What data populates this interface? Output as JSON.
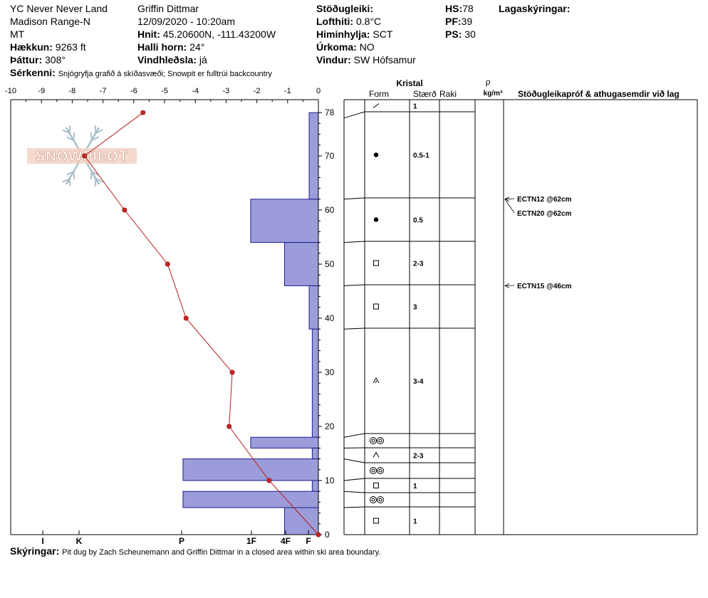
{
  "header": {
    "location": "YC Never Never Land",
    "range": "Madison Range-N",
    "state": "MT",
    "elevation_label": "Hækkun:",
    "elevation": "9263 ft",
    "aspect_label": "Þáttur:",
    "aspect": "308°",
    "observer": "Griffin Dittmar",
    "datetime": "12/09/2020 - 10:20am",
    "coords_label": "Hnit:",
    "coords": "45.20600N, -111.43200W",
    "slope_label": "Halli horn:",
    "slope": "24°",
    "wind_loading_label": "Vindhleðsla:",
    "wind_loading": "já",
    "stability_label": "Stöðugleiki:",
    "stability": "",
    "air_temp_label": "Lofthiti:",
    "air_temp": "0.8°C",
    "sky_label": "Himinhylja:",
    "sky": "SCT",
    "precip_label": "Úrkoma:",
    "precip": "NO",
    "wind_label": "Vindur:",
    "wind": "SW Hófsamur",
    "hs_label": "HS:",
    "hs": "78",
    "pf_label": "PF:",
    "pf": "39",
    "ps_label": "PS:",
    "ps": "30",
    "layers_label": "Lagaskýringar:",
    "features_label": "Sérkenni:",
    "features": "Snjógryfja grafið á skíðasvæði; Snowpit er fulltrúi backcountry"
  },
  "column_headers": {
    "crystal": "Kristal",
    "form": "Form",
    "size": "Stærð",
    "moisture": "Raki",
    "rho": "ρ",
    "density_unit": "kg/m³",
    "stability_tests": "Stöðugleikapróf & athugasemdir við lag"
  },
  "logo_text": "SNOWPILOT",
  "footer": {
    "notes_label": "Skýringar:",
    "notes": "Pit dug by Zach Scheunemann and Griffin Dittmar in a closed area within ski area boundary."
  },
  "chart_data": {
    "type": "snow-profile",
    "temperature_axis": {
      "ticks": [
        "-10",
        "-9",
        "-8",
        "-7",
        "-6",
        "-5",
        "-4",
        "-3",
        "-2",
        "-1",
        "0"
      ],
      "range": [
        -10,
        0
      ]
    },
    "height_axis": {
      "ticks": [
        "78",
        "70",
        "60",
        "50",
        "40",
        "30",
        "20",
        "10",
        "0"
      ],
      "range": [
        0,
        78
      ]
    },
    "hardness_axis": {
      "ticks": [
        "I",
        "K",
        "P",
        "1F",
        "4F",
        "F"
      ]
    },
    "temperature_profile": [
      {
        "temp": -5.7,
        "height": 78
      },
      {
        "temp": -7.6,
        "height": 70
      },
      {
        "temp": -6.3,
        "height": 60
      },
      {
        "temp": -4.9,
        "height": 50
      },
      {
        "temp": -4.3,
        "height": 40
      },
      {
        "temp": -2.8,
        "height": 30
      },
      {
        "temp": -2.9,
        "height": 20
      },
      {
        "temp": -1.6,
        "height": 10
      },
      {
        "temp": 0,
        "height": 0
      }
    ],
    "hardness_layers": [
      {
        "top": 78,
        "bottom": 62,
        "temp_extent": -0.3
      },
      {
        "top": 62,
        "bottom": 54,
        "temp_extent": -2.2
      },
      {
        "top": 54,
        "bottom": 46,
        "temp_extent": -1.1
      },
      {
        "top": 46,
        "bottom": 38,
        "temp_extent": -0.3
      },
      {
        "top": 38,
        "bottom": 18,
        "temp_extent": -0.2
      },
      {
        "top": 18,
        "bottom": 16,
        "temp_extent": -2.2
      },
      {
        "top": 16,
        "bottom": 14,
        "temp_extent": -0.2
      },
      {
        "top": 14,
        "bottom": 10,
        "temp_extent": -4.4
      },
      {
        "top": 10,
        "bottom": 8,
        "temp_extent": -0.2
      },
      {
        "top": 8,
        "bottom": 5,
        "temp_extent": -4.4
      },
      {
        "top": 5,
        "bottom": 0,
        "temp_extent": -1.1
      }
    ],
    "crystal_layers": [
      {
        "top": 78,
        "bottom": 77,
        "form": "slash",
        "size": "1"
      },
      {
        "top": 77,
        "bottom": 62,
        "form": "dot",
        "size": "0.5-1"
      },
      {
        "top": 62,
        "bottom": 54,
        "form": "dot",
        "size": "0.5"
      },
      {
        "top": 54,
        "bottom": 46,
        "form": "square",
        "size": "2-3"
      },
      {
        "top": 46,
        "bottom": 38,
        "form": "square",
        "size": "3"
      },
      {
        "top": 38,
        "bottom": 18,
        "form": "caret-double",
        "size": "3-4"
      },
      {
        "top": 18,
        "bottom": 16,
        "form": "ice-lens",
        "size": ""
      },
      {
        "top": 16,
        "bottom": 14,
        "form": "caret",
        "size": "2-3"
      },
      {
        "top": 14,
        "bottom": 10,
        "form": "ice-lens",
        "size": ""
      },
      {
        "top": 10,
        "bottom": 8,
        "form": "square",
        "size": "1"
      },
      {
        "top": 8,
        "bottom": 5,
        "form": "ice-lens",
        "size": ""
      },
      {
        "top": 5,
        "bottom": 0,
        "form": "square",
        "size": "1"
      }
    ],
    "stability_tests": [
      {
        "label": "ECTN12 @62cm",
        "height": 62
      },
      {
        "label": "ECTN20 @62cm",
        "height": 62
      },
      {
        "label": "ECTN15 @46cm",
        "height": 46
      }
    ]
  }
}
